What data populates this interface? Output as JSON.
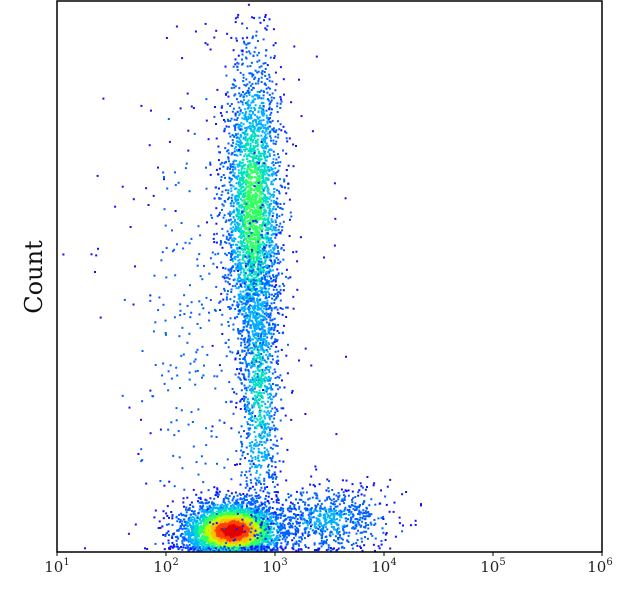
{
  "chart_data": {
    "type": "scatter",
    "title": "",
    "xlabel": "",
    "ylabel": "Count",
    "x_scale": "log",
    "xlim": [
      10,
      1000000
    ],
    "x_ticks": [
      {
        "value": 10,
        "base": "10",
        "exp": "1"
      },
      {
        "value": 100,
        "base": "10",
        "exp": "2"
      },
      {
        "value": 1000,
        "base": "10",
        "exp": "3"
      },
      {
        "value": 10000,
        "base": "10",
        "exp": "4"
      },
      {
        "value": 100000,
        "base": "10",
        "exp": "5"
      },
      {
        "value": 1000000,
        "base": "10",
        "exp": "6"
      }
    ],
    "grid": false,
    "legend": "none",
    "colormap": [
      "#1010ff",
      "#0060ff",
      "#00b0ff",
      "#00e0c0",
      "#30ff60",
      "#c0ff00",
      "#ffc000",
      "#ff4000",
      "#e00000"
    ],
    "populations": [
      {
        "x_center": 400,
        "x_spread_decades": 0.22,
        "y_center": 0.04,
        "y_spread": 0.025,
        "n": 3800,
        "peak_density": 1.0
      },
      {
        "x_center": 620,
        "x_spread_decades": 0.13,
        "y_center": 0.62,
        "y_spread": 0.14,
        "n": 3000,
        "peak_density": 0.5
      },
      {
        "x_center": 700,
        "x_spread_decades": 0.09,
        "y_center": 0.3,
        "y_spread": 0.13,
        "n": 1000,
        "peak_density": 0.35
      },
      {
        "x_center": 3000,
        "x_spread_decades": 0.3,
        "y_center": 0.06,
        "y_spread": 0.03,
        "n": 700,
        "peak_density": 0.2
      },
      {
        "x_center": 250,
        "x_spread_decades": 0.45,
        "y_center": 0.4,
        "y_spread": 0.25,
        "n": 400,
        "peak_density": 0.1
      }
    ]
  }
}
